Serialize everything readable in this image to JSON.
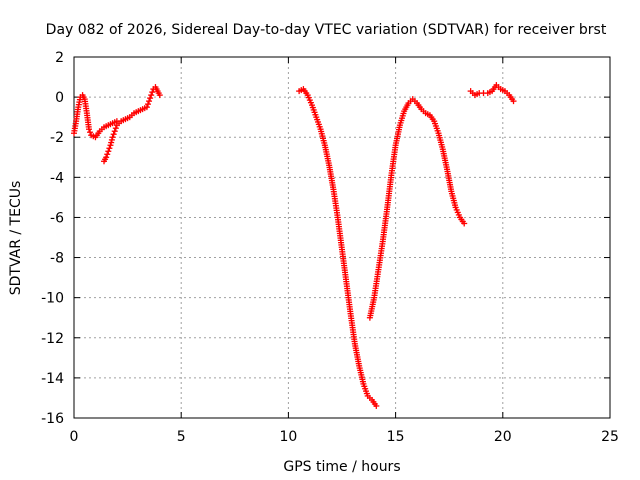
{
  "chart_data": {
    "type": "scatter",
    "title": "Day 082 of 2026, Sidereal Day-to-day VTEC variation (SDTVAR) for receiver brst",
    "xlabel": "GPS time / hours",
    "ylabel": "SDTVAR / TECUs",
    "xlim": [
      0,
      25
    ],
    "ylim": [
      -16,
      2
    ],
    "xticks": [
      0,
      5,
      10,
      15,
      20,
      25
    ],
    "yticks": [
      -16,
      -14,
      -12,
      -10,
      -8,
      -6,
      -4,
      -2,
      0,
      2
    ],
    "grid": true,
    "marker": "+",
    "color": "#ff0000",
    "series": [
      {
        "x": [
          0.0,
          0.1,
          0.2,
          0.3,
          0.4,
          0.5,
          0.6,
          0.7,
          0.8,
          1.0,
          1.2,
          1.4,
          1.6,
          1.8,
          2.0
        ],
        "y": [
          -1.8,
          -1.2,
          -0.5,
          0.0,
          0.1,
          -0.1,
          -0.8,
          -1.6,
          -1.9,
          -2.0,
          -1.7,
          -1.5,
          -1.4,
          -1.3,
          -1.2
        ]
      },
      {
        "x": [
          1.4,
          1.5,
          1.6,
          1.7,
          1.8,
          1.9,
          2.0,
          2.2,
          2.4,
          2.6,
          2.8,
          3.0,
          3.2,
          3.4,
          3.5,
          3.6,
          3.7,
          3.8,
          3.9,
          4.0
        ],
        "y": [
          -3.2,
          -3.0,
          -2.7,
          -2.4,
          -2.0,
          -1.7,
          -1.4,
          -1.2,
          -1.1,
          -1.0,
          -0.8,
          -0.7,
          -0.6,
          -0.5,
          -0.2,
          0.1,
          0.4,
          0.5,
          0.3,
          0.1
        ]
      },
      {
        "x": [
          10.5,
          10.7,
          10.9,
          11.1,
          11.3,
          11.5,
          11.7,
          11.9,
          12.1,
          12.3,
          12.5,
          12.7,
          12.9,
          13.1,
          13.3,
          13.5,
          13.7,
          13.9,
          14.1
        ],
        "y": [
          0.3,
          0.4,
          0.1,
          -0.4,
          -1.0,
          -1.6,
          -2.4,
          -3.4,
          -4.6,
          -6.0,
          -7.6,
          -9.2,
          -10.8,
          -12.3,
          -13.4,
          -14.3,
          -14.9,
          -15.1,
          -15.4
        ]
      },
      {
        "x": [
          13.8,
          14.0,
          14.2,
          14.4,
          14.6,
          14.8,
          15.0,
          15.2,
          15.4,
          15.6,
          15.8,
          16.0,
          16.2,
          16.4,
          16.6,
          16.8,
          17.0,
          17.2,
          17.4,
          17.6,
          17.8,
          18.0,
          18.2
        ],
        "y": [
          -11.0,
          -10.0,
          -8.6,
          -7.2,
          -5.6,
          -3.9,
          -2.4,
          -1.4,
          -0.7,
          -0.3,
          -0.1,
          -0.3,
          -0.6,
          -0.8,
          -0.9,
          -1.2,
          -1.8,
          -2.6,
          -3.6,
          -4.7,
          -5.5,
          -6.0,
          -6.3
        ]
      },
      {
        "x": [
          18.5,
          18.7,
          18.9,
          19.1,
          19.3,
          19.5,
          19.7,
          19.9,
          20.1,
          20.3,
          20.5
        ],
        "y": [
          0.3,
          0.1,
          0.2,
          0.2,
          0.2,
          0.3,
          0.6,
          0.4,
          0.3,
          0.1,
          -0.2
        ]
      }
    ]
  }
}
